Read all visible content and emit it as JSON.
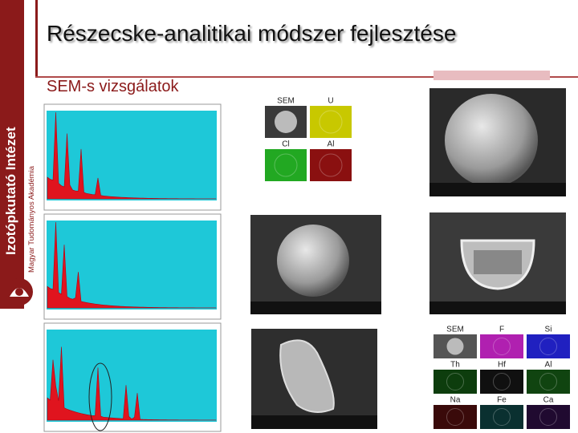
{
  "sidebar": {
    "institute": "Izotópkutató Intézet",
    "academy": "Magyar Tudományos Akadémia"
  },
  "header": {
    "title": "Részecske-analitikai módszer fejlesztése",
    "subtitle": "SEM-s vizsgálatok"
  },
  "element_maps": [
    {
      "labels": [
        "SEM",
        "U",
        "Cl",
        "Al"
      ]
    },
    {
      "labels": [
        "SEM",
        "F",
        "Si",
        "Th",
        "Hf",
        "Al",
        "Na",
        "Fe",
        "Ca"
      ]
    }
  ]
}
